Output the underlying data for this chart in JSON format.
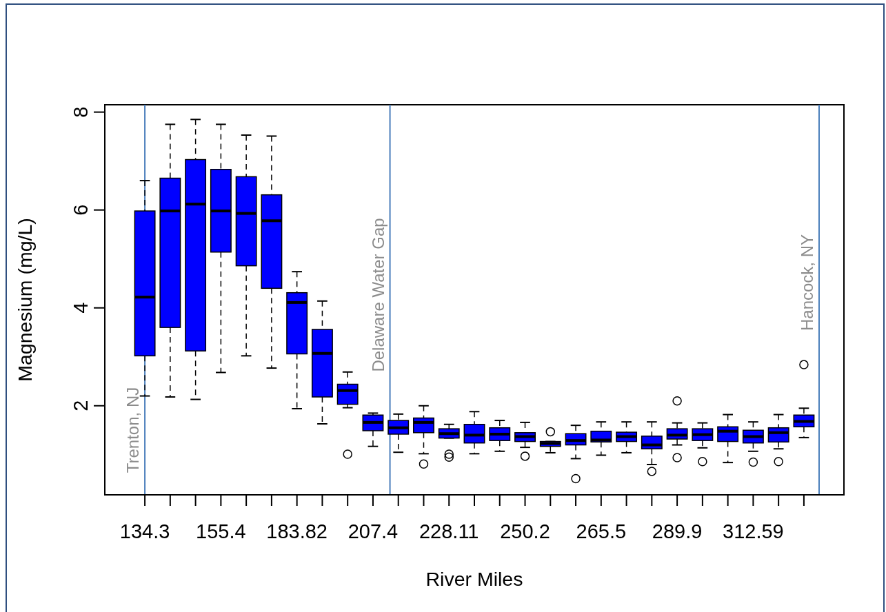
{
  "chart_data": {
    "type": "box",
    "xlabel": "River Miles",
    "ylabel": "Magnesium (mg/L)",
    "color": "#0000ff",
    "marker": "circle",
    "line_style": "dashed",
    "categories": [
      "134.3",
      null,
      null,
      "155.4",
      null,
      null,
      "183.82",
      null,
      null,
      "207.4",
      null,
      null,
      "228.11",
      null,
      null,
      "250.2",
      null,
      null,
      "265.5",
      null,
      null,
      "289.9",
      null,
      null,
      "312.59",
      null,
      null
    ],
    "boxes": [
      {
        "low": 2.2,
        "q1": 3.02,
        "median": 4.22,
        "q3": 5.98,
        "high": 6.6
      },
      {
        "low": 2.18,
        "q1": 3.6,
        "median": 5.98,
        "q3": 6.65,
        "high": 7.75
      },
      {
        "low": 2.13,
        "q1": 3.12,
        "median": 6.12,
        "q3": 7.03,
        "high": 7.85
      },
      {
        "low": 2.68,
        "q1": 5.14,
        "median": 5.98,
        "q3": 6.83,
        "high": 7.75
      },
      {
        "low": 3.02,
        "q1": 4.86,
        "median": 5.93,
        "q3": 6.68,
        "high": 7.53
      },
      {
        "low": 2.77,
        "q1": 4.4,
        "median": 5.78,
        "q3": 6.31,
        "high": 7.51
      },
      {
        "low": 1.94,
        "q1": 3.06,
        "median": 4.11,
        "q3": 4.31,
        "high": 4.74
      },
      {
        "low": 1.63,
        "q1": 2.18,
        "median": 3.07,
        "q3": 3.56,
        "high": 4.14
      },
      {
        "low": 1.96,
        "q1": 2.03,
        "median": 2.31,
        "q3": 2.44,
        "high": 2.69,
        "outliers": [
          1.01
        ]
      },
      {
        "low": 1.17,
        "q1": 1.49,
        "median": 1.66,
        "q3": 1.81,
        "high": 1.85
      },
      {
        "low": 1.05,
        "q1": 1.42,
        "median": 1.55,
        "q3": 1.7,
        "high": 1.83
      },
      {
        "low": 1.02,
        "q1": 1.45,
        "median": 1.66,
        "q3": 1.75,
        "high": 2.0,
        "outliers": [
          0.81
        ]
      },
      {
        "low": 1.34,
        "q1": 1.34,
        "median": 1.43,
        "q3": 1.53,
        "high": 1.62,
        "outliers": [
          1.01,
          0.95
        ]
      },
      {
        "low": 1.02,
        "q1": 1.24,
        "median": 1.4,
        "q3": 1.62,
        "high": 1.88
      },
      {
        "low": 1.07,
        "q1": 1.29,
        "median": 1.42,
        "q3": 1.55,
        "high": 1.7
      },
      {
        "low": 1.15,
        "q1": 1.27,
        "median": 1.37,
        "q3": 1.45,
        "high": 1.66,
        "outliers": [
          0.97
        ]
      },
      {
        "low": 1.04,
        "q1": 1.17,
        "median": 1.23,
        "q3": 1.27,
        "high": 1.27,
        "outliers": [
          1.47
        ]
      },
      {
        "low": 0.92,
        "q1": 1.2,
        "median": 1.29,
        "q3": 1.43,
        "high": 1.6,
        "outliers": [
          0.51
        ]
      },
      {
        "low": 0.99,
        "q1": 1.26,
        "median": 1.3,
        "q3": 1.48,
        "high": 1.67
      },
      {
        "low": 1.04,
        "q1": 1.27,
        "median": 1.37,
        "q3": 1.46,
        "high": 1.67
      },
      {
        "low": 0.8,
        "q1": 1.12,
        "median": 1.2,
        "q3": 1.38,
        "high": 1.67,
        "outliers": [
          0.66
        ]
      },
      {
        "low": 1.2,
        "q1": 1.32,
        "median": 1.4,
        "q3": 1.53,
        "high": 1.65,
        "outliers": [
          2.1,
          0.94
        ]
      },
      {
        "low": 1.14,
        "q1": 1.29,
        "median": 1.41,
        "q3": 1.53,
        "high": 1.65,
        "outliers": [
          0.86
        ]
      },
      {
        "low": 0.84,
        "q1": 1.27,
        "median": 1.48,
        "q3": 1.57,
        "high": 1.82
      },
      {
        "low": 1.07,
        "q1": 1.24,
        "median": 1.37,
        "q3": 1.5,
        "high": 1.67,
        "outliers": [
          0.85
        ]
      },
      {
        "low": 1.12,
        "q1": 1.26,
        "median": 1.45,
        "q3": 1.55,
        "high": 1.82,
        "outliers": [
          0.86
        ]
      },
      {
        "low": 1.35,
        "q1": 1.57,
        "median": 1.68,
        "q3": 1.81,
        "high": 1.95,
        "outliers": [
          2.84
        ]
      }
    ],
    "ylim": [
      0.18,
      8.15
    ],
    "yticks": [
      2,
      4,
      6,
      8
    ],
    "ref_lines": [
      {
        "axis": "x",
        "value": "134.3",
        "label": "Trenton, NJ",
        "color": "#4a7ebb"
      }
    ],
    "annotations": [
      "Delaware Water Gap",
      "Hancock, NY"
    ]
  }
}
